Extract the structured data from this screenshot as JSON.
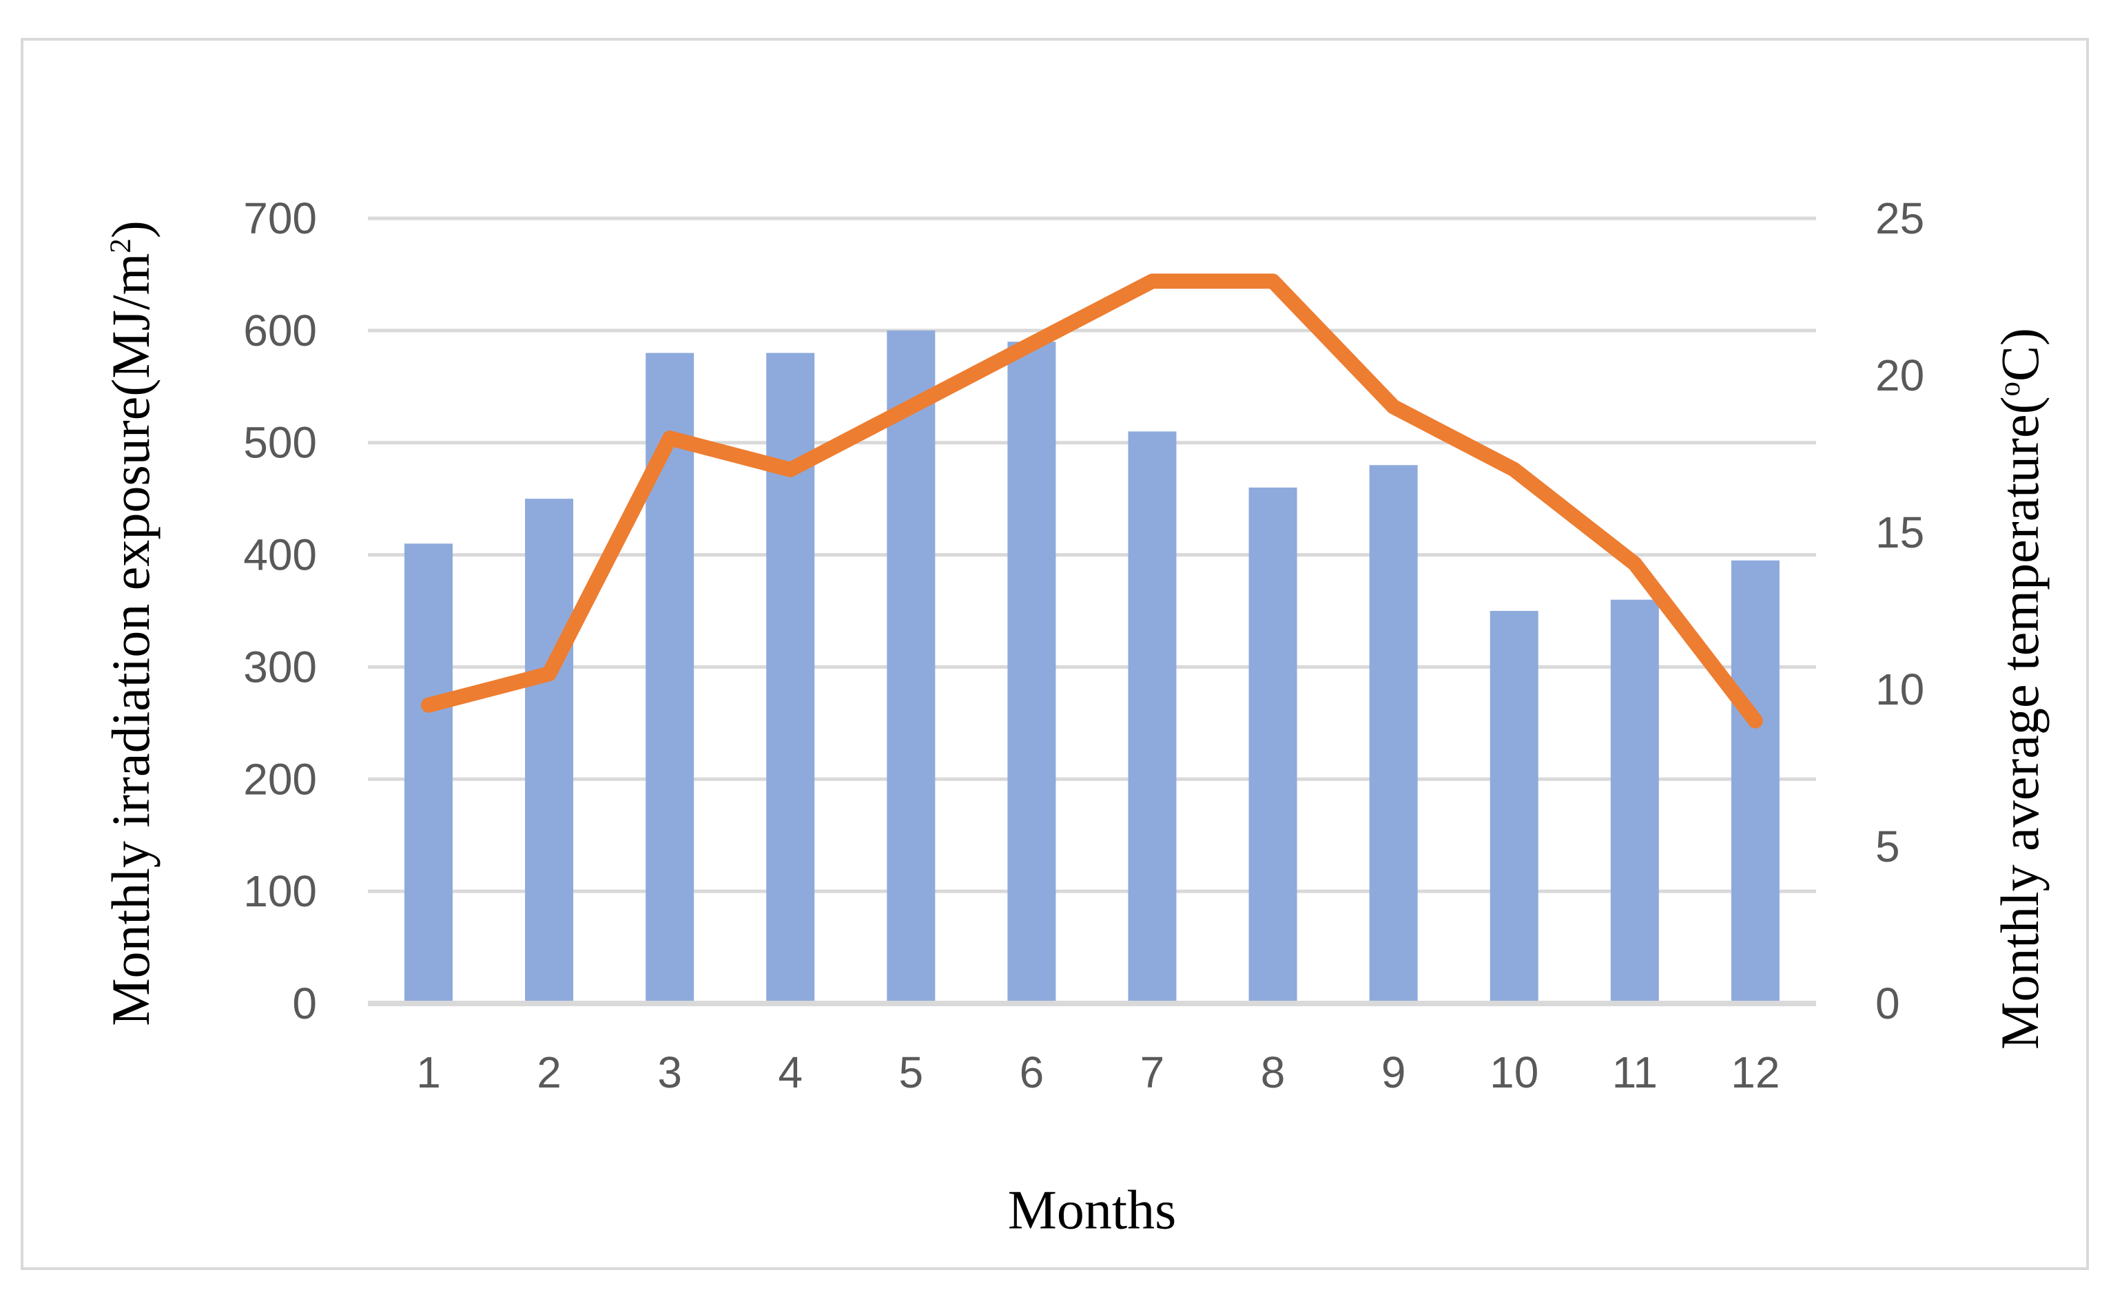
{
  "figure": {
    "background": "#FFFFFF",
    "border_color": "#D9D9D9"
  },
  "chart_data": {
    "type": "bar",
    "subtype": "bar-line-combo",
    "categories": [
      "1",
      "2",
      "3",
      "4",
      "5",
      "6",
      "7",
      "8",
      "9",
      "10",
      "11",
      "12"
    ],
    "series": [
      {
        "name": "Monthly irradiation exposure",
        "type": "bar",
        "axis": "left",
        "color": "#8EAADC",
        "values": [
          410,
          450,
          580,
          580,
          600,
          590,
          510,
          460,
          480,
          350,
          360,
          395
        ]
      },
      {
        "name": "Monthly average temperature",
        "type": "line",
        "axis": "right",
        "color": "#ED7D31",
        "values": [
          9.5,
          10.5,
          18,
          17,
          19,
          21,
          23,
          23,
          19,
          17,
          14,
          9
        ]
      }
    ],
    "title": "",
    "xlabel": "Months",
    "ylabel_left": "Monthly irradiation exposure(MJ/m2)",
    "ylabel_right": "Monthly average temperature(oC)",
    "ylim_left": [
      0,
      700
    ],
    "ylim_right": [
      0,
      25
    ],
    "yticks_left": [
      0,
      100,
      200,
      300,
      400,
      500,
      600,
      700
    ],
    "yticks_right": [
      0,
      5,
      10,
      15,
      20,
      25
    ],
    "grid": "horizontal",
    "legend": "none",
    "gridline_color": "#D9D9D9",
    "axis_line_color": "#D9D9D9",
    "tick_label_color": "#595959"
  },
  "titles": {
    "x_axis": "Months",
    "y_left_prefix": "Monthly irradiation exposure(MJ/m",
    "y_left_sup": "2",
    "y_left_suffix": ")",
    "y_right_prefix": "Monthly average temperature(",
    "y_right_sup": "o",
    "y_right_suffix": "C)"
  }
}
